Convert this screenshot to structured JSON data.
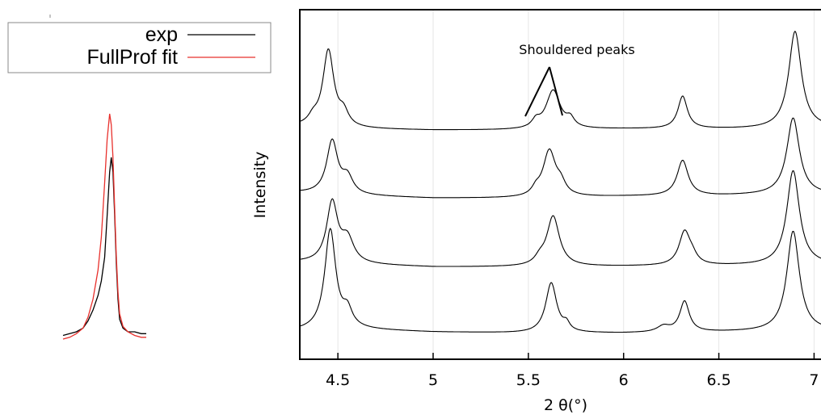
{
  "chart_data": [
    {
      "type": "line",
      "panel": "inset",
      "legend": "top",
      "series": [
        {
          "name": "exp",
          "color": "#000000",
          "x": [
            0.0,
            0.08,
            0.16,
            0.24,
            0.3,
            0.36,
            0.42,
            0.46,
            0.5,
            0.53,
            0.56,
            0.58,
            0.6,
            0.62,
            0.64,
            0.66,
            0.68,
            0.72,
            0.78,
            0.86,
            0.94,
            1.0
          ],
          "values": [
            0.02,
            0.03,
            0.04,
            0.06,
            0.1,
            0.16,
            0.24,
            0.32,
            0.45,
            0.68,
            0.92,
            1.0,
            0.92,
            0.68,
            0.42,
            0.22,
            0.11,
            0.06,
            0.04,
            0.04,
            0.03,
            0.03
          ]
        },
        {
          "name": "FullProf fit",
          "color": "#e8302c",
          "x": [
            0.0,
            0.08,
            0.16,
            0.24,
            0.3,
            0.36,
            0.42,
            0.46,
            0.5,
            0.53,
            0.56,
            0.58,
            0.6,
            0.62,
            0.64,
            0.66,
            0.68,
            0.72,
            0.78,
            0.86,
            0.94,
            1.0
          ],
          "values": [
            0.0,
            0.01,
            0.03,
            0.06,
            0.12,
            0.22,
            0.38,
            0.56,
            0.86,
            1.1,
            1.24,
            1.18,
            1.0,
            0.72,
            0.46,
            0.26,
            0.14,
            0.07,
            0.04,
            0.02,
            0.01,
            0.01
          ]
        }
      ]
    },
    {
      "type": "line",
      "panel": "main",
      "xlabel": "2 θ(°)",
      "ylabel": "Intensity",
      "xlim": [
        4.3,
        7.1
      ],
      "xticks": [
        "4.5",
        "5",
        "5.5",
        "6",
        "6.5",
        "7"
      ],
      "xtick_values": [
        4.5,
        5.0,
        5.5,
        6.0,
        6.5,
        7.0
      ],
      "grid": "vertical",
      "annotation": "Shouldered peaks",
      "annotation_x": 5.65,
      "series": [
        {
          "offset": 3,
          "baseline": [
            [
              4.3,
              0.0
            ],
            [
              4.6,
              -0.04
            ],
            [
              5.0,
              -0.06
            ],
            [
              5.5,
              -0.06
            ],
            [
              6.0,
              -0.04
            ],
            [
              6.5,
              -0.04
            ],
            [
              6.8,
              -0.04
            ],
            [
              7.1,
              -0.02
            ]
          ],
          "peaks": [
            {
              "x0": 4.45,
              "h": 1.3,
              "w": 0.035
            },
            {
              "x0": 4.53,
              "h": 0.22,
              "w": 0.03
            },
            {
              "x0": 4.37,
              "h": 0.12,
              "w": 0.03
            },
            {
              "x0": 5.63,
              "h": 0.66,
              "w": 0.045
            },
            {
              "x0": 5.54,
              "h": 0.12,
              "w": 0.025
            },
            {
              "x0": 5.72,
              "h": 0.14,
              "w": 0.025
            },
            {
              "x0": 6.31,
              "h": 0.55,
              "w": 0.03
            },
            {
              "x0": 6.9,
              "h": 1.65,
              "w": 0.04
            }
          ]
        },
        {
          "offset": 2,
          "baseline": [
            [
              4.3,
              0.0
            ],
            [
              4.6,
              -0.05
            ],
            [
              5.0,
              -0.09
            ],
            [
              5.5,
              -0.09
            ],
            [
              6.0,
              -0.06
            ],
            [
              6.5,
              -0.05
            ],
            [
              6.8,
              -0.03
            ],
            [
              7.1,
              -0.03
            ]
          ],
          "peaks": [
            {
              "x0": 4.47,
              "h": 0.9,
              "w": 0.035
            },
            {
              "x0": 4.55,
              "h": 0.28,
              "w": 0.035
            },
            {
              "x0": 5.61,
              "h": 0.78,
              "w": 0.04
            },
            {
              "x0": 5.67,
              "h": 0.18,
              "w": 0.03
            },
            {
              "x0": 5.54,
              "h": 0.1,
              "w": 0.025
            },
            {
              "x0": 6.31,
              "h": 0.6,
              "w": 0.035
            },
            {
              "x0": 6.89,
              "h": 1.3,
              "w": 0.04
            }
          ]
        },
        {
          "offset": 1,
          "baseline": [
            [
              4.3,
              0.0
            ],
            [
              4.6,
              -0.04
            ],
            [
              5.0,
              -0.08
            ],
            [
              5.5,
              -0.08
            ],
            [
              6.0,
              -0.07
            ],
            [
              6.5,
              -0.06
            ],
            [
              6.8,
              -0.05
            ],
            [
              7.1,
              -0.04
            ]
          ],
          "peaks": [
            {
              "x0": 4.47,
              "h": 1.02,
              "w": 0.035
            },
            {
              "x0": 4.55,
              "h": 0.4,
              "w": 0.04
            },
            {
              "x0": 5.63,
              "h": 0.85,
              "w": 0.04
            },
            {
              "x0": 5.56,
              "h": 0.1,
              "w": 0.03
            },
            {
              "x0": 6.32,
              "h": 0.56,
              "w": 0.035
            },
            {
              "x0": 6.36,
              "h": 0.12,
              "w": 0.03
            },
            {
              "x0": 6.89,
              "h": 1.6,
              "w": 0.04
            }
          ]
        },
        {
          "offset": 0,
          "baseline": [
            [
              4.3,
              0.0
            ],
            [
              4.6,
              0.02
            ],
            [
              5.0,
              -0.02
            ],
            [
              5.5,
              -0.04
            ],
            [
              6.0,
              -0.04
            ],
            [
              6.5,
              -0.02
            ],
            [
              6.8,
              -0.01
            ],
            [
              7.1,
              0.0
            ]
          ],
          "peaks": [
            {
              "x0": 4.46,
              "h": 1.7,
              "w": 0.035
            },
            {
              "x0": 4.55,
              "h": 0.28,
              "w": 0.03
            },
            {
              "x0": 5.62,
              "h": 0.85,
              "w": 0.035
            },
            {
              "x0": 5.7,
              "h": 0.12,
              "w": 0.02
            },
            {
              "x0": 6.32,
              "h": 0.52,
              "w": 0.03
            },
            {
              "x0": 6.21,
              "h": 0.1,
              "w": 0.04
            },
            {
              "x0": 6.89,
              "h": 1.7,
              "w": 0.04
            }
          ]
        }
      ]
    }
  ]
}
